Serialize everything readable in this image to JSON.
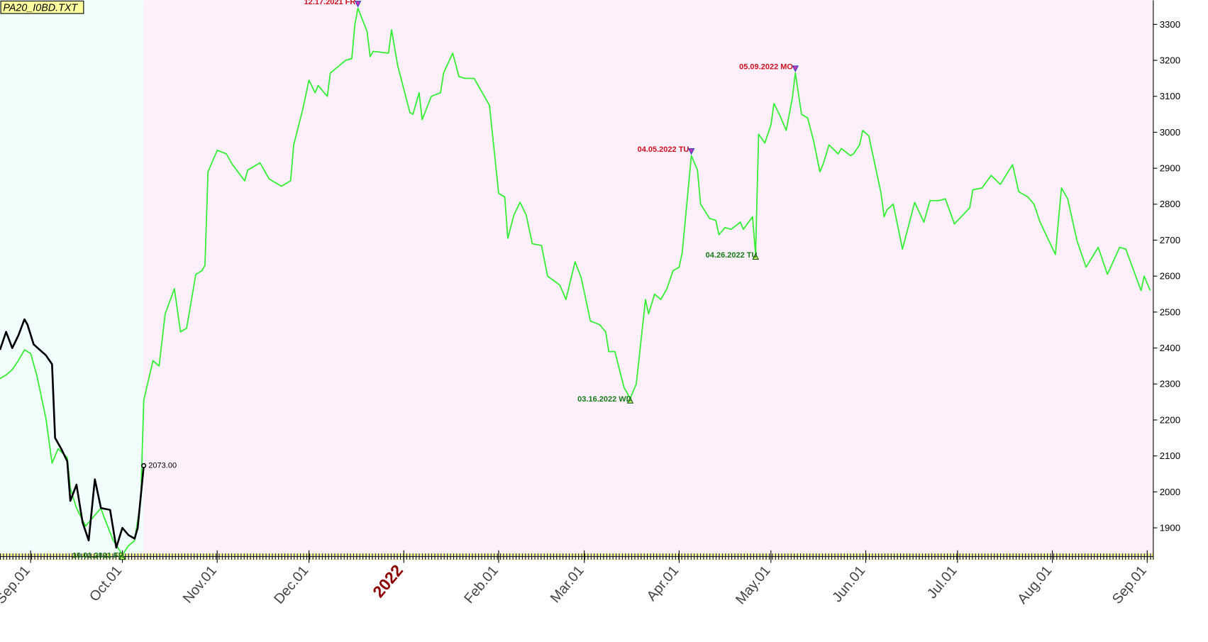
{
  "chart_data": {
    "type": "line",
    "file_label": "PA20_I0BD.TXT",
    "xlim": [
      "2021-08-22",
      "2022-09-03"
    ],
    "ylim": [
      1820,
      3352
    ],
    "yticks": [
      1900,
      2000,
      2100,
      2200,
      2300,
      2400,
      2500,
      2600,
      2700,
      2800,
      2900,
      3000,
      3100,
      3200,
      3300
    ],
    "xticks": [
      {
        "value": "2021-09-01",
        "label": "Sep.01"
      },
      {
        "value": "2021-10-01",
        "label": "Oct.01"
      },
      {
        "value": "2021-11-01",
        "label": "Nov.01"
      },
      {
        "value": "2021-12-01",
        "label": "Dec.01"
      },
      {
        "value": "2022-01-01",
        "label": "2022",
        "color": "#8b0000"
      },
      {
        "value": "2022-02-01",
        "label": "Feb.01"
      },
      {
        "value": "2022-03-01",
        "label": "Mar.01"
      },
      {
        "value": "2022-04-01",
        "label": "Apr.01"
      },
      {
        "value": "2022-05-01",
        "label": "May.01"
      },
      {
        "value": "2022-06-01",
        "label": "Jun.01"
      },
      {
        "value": "2022-07-01",
        "label": "Jul.01"
      },
      {
        "value": "2022-08-01",
        "label": "Aug.01"
      },
      {
        "value": "2022-09-01",
        "label": "Sep.01"
      }
    ],
    "regions": [
      {
        "start": "2021-08-22",
        "end": "2021-10-08",
        "color": "#f0fffc"
      },
      {
        "start": "2021-10-08",
        "end": "2022-09-03",
        "color": "#fdf0fb"
      }
    ],
    "series": [
      {
        "color": "#33ee33",
        "x": [
          "2021-08-22",
          "2021-08-24",
          "2021-08-26",
          "2021-08-28",
          "2021-08-30",
          "2021-09-01",
          "2021-09-03",
          "2021-09-06",
          "2021-09-08",
          "2021-09-10",
          "2021-09-13",
          "2021-09-14",
          "2021-09-16",
          "2021-09-19",
          "2021-09-22",
          "2021-09-24",
          "2021-09-25",
          "2021-09-28",
          "2021-10-01",
          "2021-10-03",
          "2021-10-05",
          "2021-10-07",
          "2021-10-08",
          "2021-10-11",
          "2021-10-13",
          "2021-10-15",
          "2021-10-18",
          "2021-10-20",
          "2021-10-22",
          "2021-10-25",
          "2021-10-27",
          "2021-10-28",
          "2021-10-29",
          "2021-11-01",
          "2021-11-04",
          "2021-11-06",
          "2021-11-10",
          "2021-11-11",
          "2021-11-15",
          "2021-11-18",
          "2021-11-22",
          "2021-11-25",
          "2021-11-26",
          "2021-11-29",
          "2021-12-01",
          "2021-12-03",
          "2021-12-04",
          "2021-12-07",
          "2021-12-08",
          "2021-12-13",
          "2021-12-15",
          "2021-12-16",
          "2021-12-17",
          "2021-12-20",
          "2021-12-21",
          "2021-12-22",
          "2021-12-27",
          "2021-12-28",
          "2021-12-30",
          "2022-01-03",
          "2022-01-04",
          "2022-01-06",
          "2022-01-07",
          "2022-01-10",
          "2022-01-13",
          "2022-01-14",
          "2022-01-17",
          "2022-01-19",
          "2022-01-21",
          "2022-01-24",
          "2022-01-27",
          "2022-01-29",
          "2022-02-01",
          "2022-02-03",
          "2022-02-04",
          "2022-02-06",
          "2022-02-08",
          "2022-02-10",
          "2022-02-12",
          "2022-02-15",
          "2022-02-17",
          "2022-02-21",
          "2022-02-23",
          "2022-02-26",
          "2022-02-28",
          "2022-03-03",
          "2022-03-06",
          "2022-03-08",
          "2022-03-09",
          "2022-03-11",
          "2022-03-14",
          "2022-03-16",
          "2022-03-18",
          "2022-03-21",
          "2022-03-22",
          "2022-03-24",
          "2022-03-26",
          "2022-03-28",
          "2022-03-30",
          "2022-04-01",
          "2022-04-02",
          "2022-04-05",
          "2022-04-07",
          "2022-04-08",
          "2022-04-11",
          "2022-04-13",
          "2022-04-14",
          "2022-04-16",
          "2022-04-18",
          "2022-04-21",
          "2022-04-22",
          "2022-04-25",
          "2022-04-26",
          "2022-04-27",
          "2022-04-29",
          "2022-05-01",
          "2022-05-02",
          "2022-05-04",
          "2022-05-06",
          "2022-05-08",
          "2022-05-09",
          "2022-05-11",
          "2022-05-13",
          "2022-05-15",
          "2022-05-17",
          "2022-05-18",
          "2022-05-20",
          "2022-05-23",
          "2022-05-24",
          "2022-05-27",
          "2022-05-28",
          "2022-05-30",
          "2022-05-31",
          "2022-06-02",
          "2022-06-06",
          "2022-06-07",
          "2022-06-08",
          "2022-06-10",
          "2022-06-13",
          "2022-06-17",
          "2022-06-20",
          "2022-06-22",
          "2022-06-25",
          "2022-06-27",
          "2022-06-30",
          "2022-07-05",
          "2022-07-06",
          "2022-07-09",
          "2022-07-12",
          "2022-07-15",
          "2022-07-19",
          "2022-07-21",
          "2022-07-24",
          "2022-07-26",
          "2022-07-28",
          "2022-08-02",
          "2022-08-03",
          "2022-08-04",
          "2022-08-06",
          "2022-08-09",
          "2022-08-12",
          "2022-08-16",
          "2022-08-19",
          "2022-08-23",
          "2022-08-25",
          "2022-08-30",
          "2022-08-31",
          "2022-09-02"
        ],
        "values": [
          2315,
          2325,
          2340,
          2365,
          2395,
          2385,
          2325,
          2205,
          2080,
          2120,
          2095,
          2010,
          1955,
          1905,
          1935,
          1955,
          1930,
          1865,
          1825,
          1850,
          1865,
          1975,
          2255,
          2365,
          2350,
          2495,
          2565,
          2445,
          2455,
          2605,
          2615,
          2630,
          2890,
          2950,
          2940,
          2910,
          2865,
          2895,
          2915,
          2870,
          2850,
          2865,
          2965,
          3065,
          3145,
          3110,
          3130,
          3100,
          3165,
          3200,
          3205,
          3300,
          3345,
          3280,
          3210,
          3225,
          3220,
          3285,
          3185,
          3055,
          3050,
          3110,
          3035,
          3100,
          3110,
          3165,
          3220,
          3155,
          3150,
          3150,
          3105,
          3075,
          2830,
          2820,
          2705,
          2770,
          2805,
          2770,
          2690,
          2685,
          2600,
          2575,
          2535,
          2640,
          2595,
          2475,
          2465,
          2445,
          2390,
          2390,
          2290,
          2260,
          2300,
          2535,
          2495,
          2550,
          2535,
          2565,
          2615,
          2625,
          2665,
          2935,
          2895,
          2800,
          2760,
          2755,
          2715,
          2735,
          2730,
          2750,
          2730,
          2765,
          2660,
          2995,
          2970,
          3020,
          3080,
          3045,
          3005,
          3095,
          3165,
          3050,
          3040,
          2975,
          2890,
          2910,
          2965,
          2940,
          2955,
          2935,
          2940,
          2965,
          3005,
          2990,
          2830,
          2765,
          2785,
          2800,
          2675,
          2805,
          2750,
          2810,
          2810,
          2815,
          2745,
          2790,
          2840,
          2845,
          2880,
          2855,
          2910,
          2835,
          2820,
          2800,
          2750,
          2660,
          2755,
          2845,
          2815,
          2700,
          2625,
          2680,
          2605,
          2680,
          2675,
          2560,
          2600,
          2560
        ]
      },
      {
        "color": "#000000",
        "x": [
          "2021-08-22",
          "2021-08-24",
          "2021-08-26",
          "2021-08-28",
          "2021-08-30",
          "2021-08-31",
          "2021-09-02",
          "2021-09-06",
          "2021-09-08",
          "2021-09-09",
          "2021-09-11",
          "2021-09-13",
          "2021-09-14",
          "2021-09-16",
          "2021-09-18",
          "2021-09-20",
          "2021-09-22",
          "2021-09-24",
          "2021-09-27",
          "2021-09-29",
          "2021-10-01",
          "2021-10-03",
          "2021-10-05",
          "2021-10-06",
          "2021-10-08"
        ],
        "values": [
          2395,
          2445,
          2400,
          2435,
          2480,
          2465,
          2410,
          2380,
          2355,
          2150,
          2120,
          2085,
          1975,
          2020,
          1915,
          1865,
          2035,
          1955,
          1950,
          1845,
          1900,
          1880,
          1870,
          1900,
          2073
        ],
        "value_labels": [
          null,
          null,
          null,
          null,
          null,
          null,
          null,
          null,
          null,
          null,
          null,
          null,
          null,
          null,
          null,
          null,
          null,
          null,
          null,
          null,
          null,
          null,
          null,
          null,
          "2073.00"
        ]
      }
    ],
    "annotations": [
      {
        "text": "12.17.2021 FR",
        "x": "2021-12-17",
        "y": 3345,
        "kind": "high",
        "color": "#cc1122"
      },
      {
        "text": "10.01.2021 FR",
        "x": "2021-10-01",
        "y": 1825,
        "kind": "low",
        "color": "#1a7a1a"
      },
      {
        "text": "03.16.2022 WD",
        "x": "2022-03-16",
        "y": 2260,
        "kind": "low",
        "color": "#1a7a1a"
      },
      {
        "text": "04.05.2022 TU",
        "x": "2022-04-05",
        "y": 2935,
        "kind": "high",
        "color": "#cc1122"
      },
      {
        "text": "04.26.2022 TU",
        "x": "2022-04-26",
        "y": 2660,
        "kind": "low",
        "color": "#1a7a1a"
      },
      {
        "text": "05.09.2022 MO",
        "x": "2022-05-09",
        "y": 3165,
        "kind": "high",
        "color": "#cc1122"
      }
    ]
  }
}
